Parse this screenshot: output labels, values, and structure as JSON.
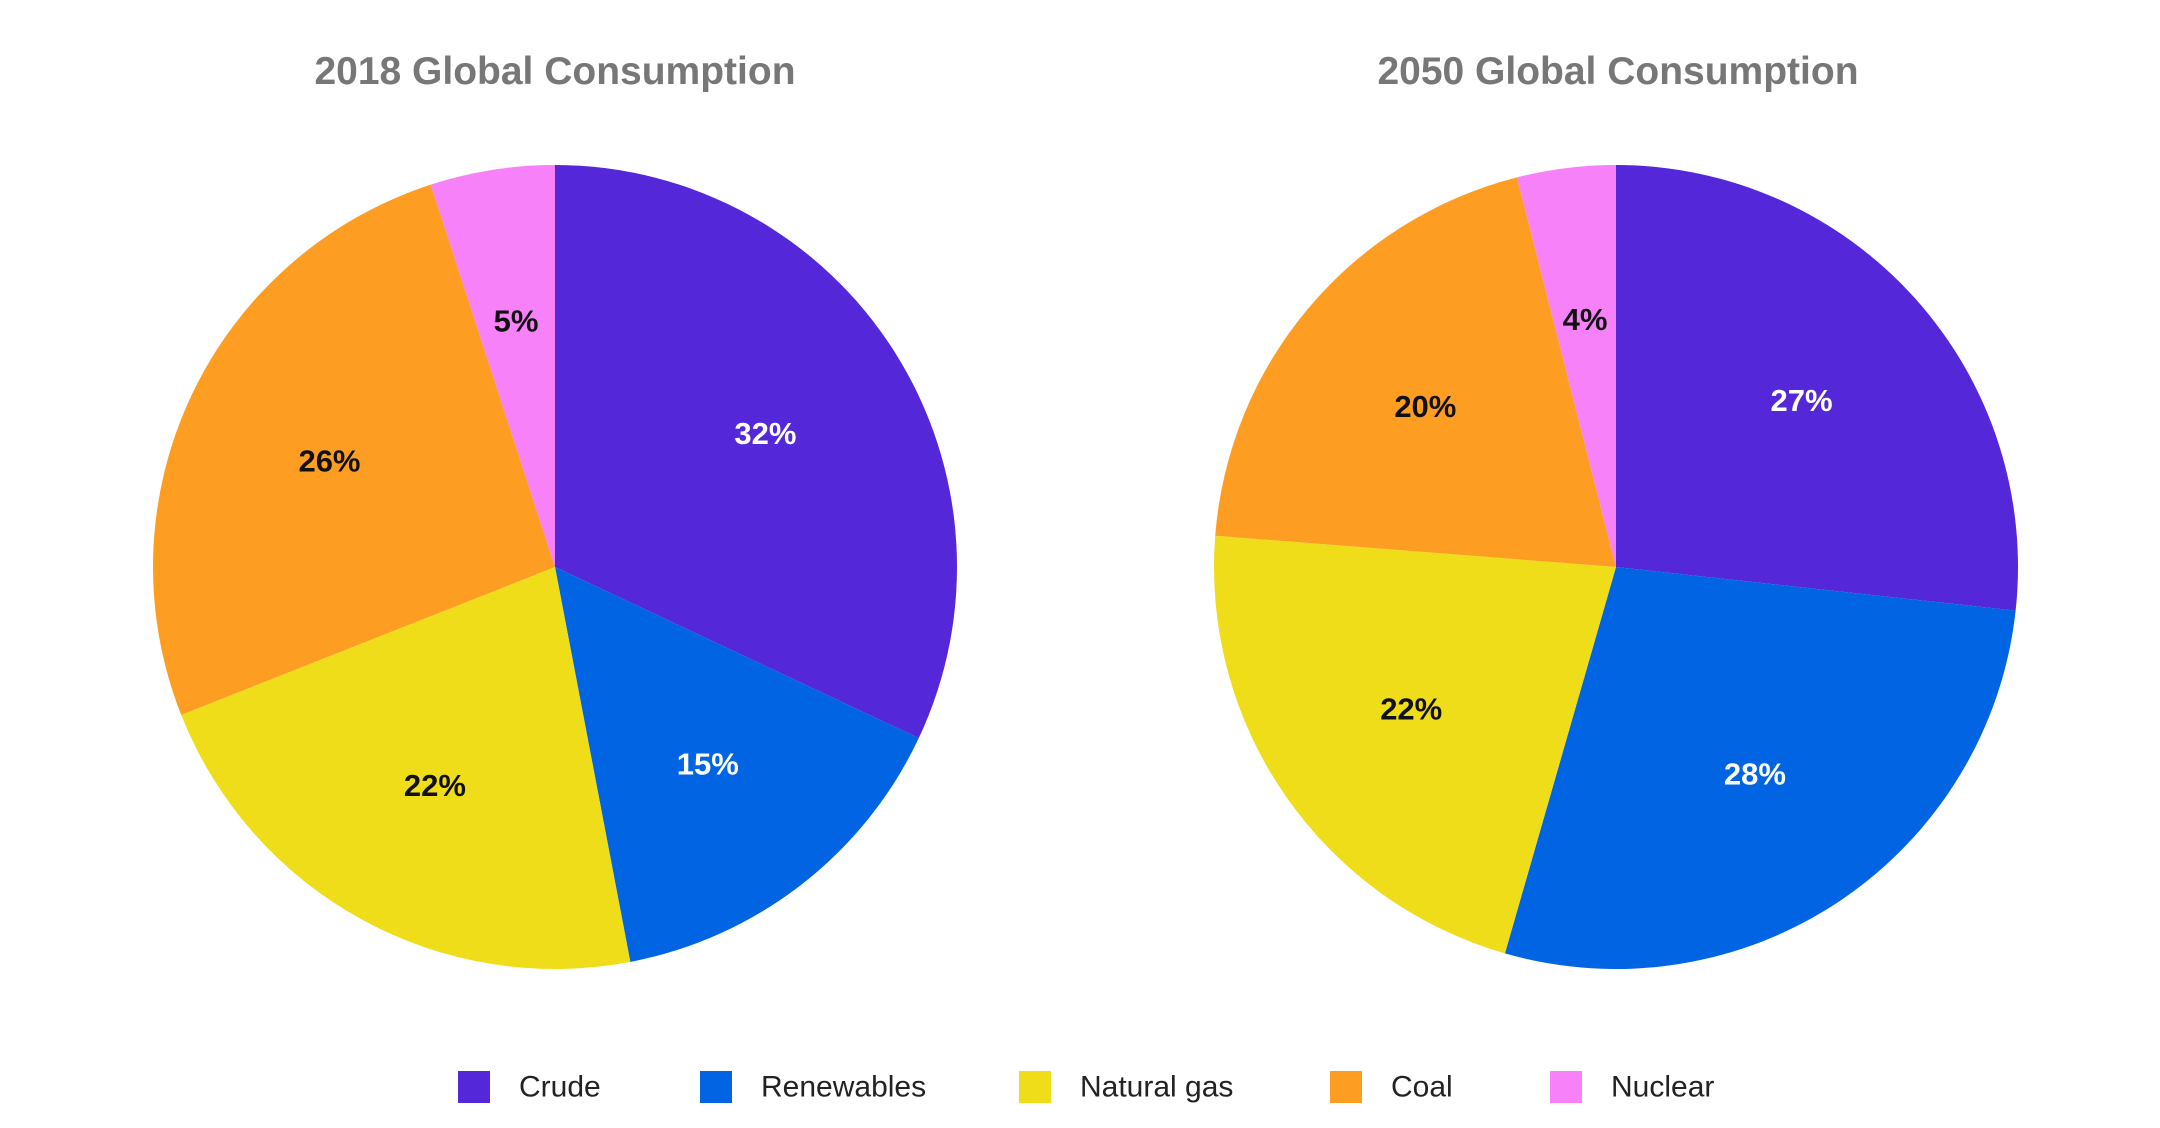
{
  "chart_data": [
    {
      "type": "pie",
      "title": "2018 Global Consumption",
      "slices": [
        {
          "name": "Crude",
          "value": 32,
          "label": "32%"
        },
        {
          "name": "Renewables",
          "value": 15,
          "label": "15%"
        },
        {
          "name": "Natural gas",
          "value": 22,
          "label": "22%"
        },
        {
          "name": "Coal",
          "value": 26,
          "label": "26%"
        },
        {
          "name": "Nuclear",
          "value": 5,
          "label": "5%"
        }
      ]
    },
    {
      "type": "pie",
      "title": "2050 Global Consumption",
      "slices": [
        {
          "name": "Crude",
          "value": 27,
          "label": "27%"
        },
        {
          "name": "Renewables",
          "value": 28,
          "label": "28%"
        },
        {
          "name": "Natural gas",
          "value": 22,
          "label": "22%"
        },
        {
          "name": "Coal",
          "value": 20,
          "label": "20%"
        },
        {
          "name": "Nuclear",
          "value": 4,
          "label": "4%"
        }
      ]
    }
  ],
  "legend": {
    "position": "bottom",
    "items": [
      {
        "name": "Crude",
        "color": "#5427D8"
      },
      {
        "name": "Renewables",
        "color": "#0165E3"
      },
      {
        "name": "Natural gas",
        "color": "#EFDD1A"
      },
      {
        "name": "Coal",
        "color": "#FD9E22"
      },
      {
        "name": "Nuclear",
        "color": "#F781F8"
      }
    ]
  },
  "label_colors": {
    "Crude": "#FFFFFF",
    "Renewables": "#FFFFFF",
    "Natural gas": "#111111",
    "Coal": "#111111",
    "Nuclear": "#111111"
  }
}
